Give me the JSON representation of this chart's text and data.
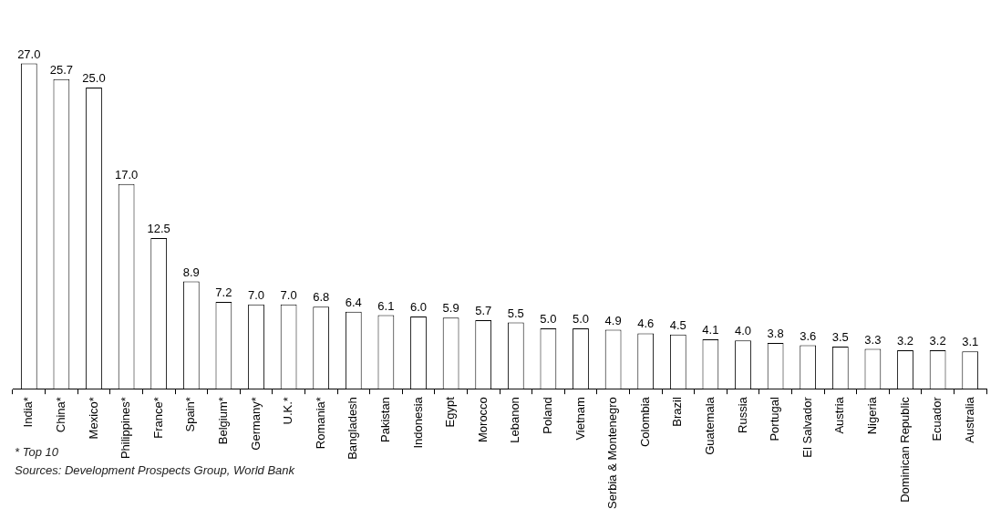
{
  "chart_data": {
    "type": "bar",
    "categories": [
      "India*",
      "China*",
      "Mexico*",
      "Philippines*",
      "France*",
      "Spain*",
      "Belgium*",
      "Germany*",
      "U.K.*",
      "Romania*",
      "Bangladesh",
      "Pakistan",
      "Indonesia",
      "Egypt",
      "Morocco",
      "Lebanon",
      "Poland",
      "Vietnam",
      "Serbia & Montenegro",
      "Colombia",
      "Brazil",
      "Guatemala",
      "Russia",
      "Portugal",
      "El Salvador",
      "Austria",
      "Nigeria",
      "Dominican Republic",
      "Ecuador",
      "Australia"
    ],
    "values": [
      27.0,
      25.7,
      25.0,
      17.0,
      12.5,
      8.9,
      7.2,
      7.0,
      7.0,
      6.8,
      6.4,
      6.1,
      6.0,
      5.9,
      5.7,
      5.5,
      5.0,
      5.0,
      4.9,
      4.6,
      4.5,
      4.1,
      4.0,
      3.8,
      3.6,
      3.5,
      3.3,
      3.2,
      3.2,
      3.1
    ],
    "value_labels": [
      "27.0",
      "25.7",
      "25.0",
      "17.0",
      "12.5",
      "8.9",
      "7.2",
      "7.0",
      "7.0",
      "6.8",
      "6.4",
      "6.1",
      "6.0",
      "5.9",
      "5.7",
      "5.5",
      "5.0",
      "5.0",
      "4.9",
      "4.6",
      "4.5",
      "4.1",
      "4.0",
      "3.8",
      "3.6",
      "3.5",
      "3.3",
      "3.2",
      "3.2",
      "3.1"
    ],
    "color": "#ffffff",
    "annotations": [
      "* Top 10",
      "Sources: Development Prospects Group, World Bank"
    ],
    "grid": false,
    "legend": false
  }
}
